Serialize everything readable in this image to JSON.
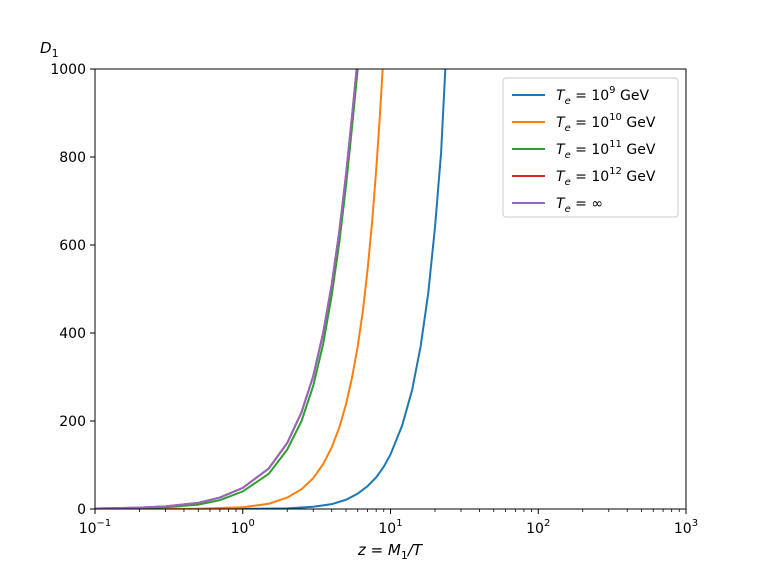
{
  "chart_data": {
    "type": "line",
    "xscale": "log",
    "xlim": [
      0.1,
      1000
    ],
    "ylim": [
      0,
      1000
    ],
    "grid": false,
    "legend_position": "top-right",
    "xlabel": {
      "main": "z = M",
      "sub": "1",
      "tail": "/T"
    },
    "ylabel": {
      "main": "D",
      "sub": "1"
    },
    "xticks": [
      {
        "value": 0.1,
        "base": "10",
        "exp": "−1"
      },
      {
        "value": 1,
        "base": "10",
        "exp": "0"
      },
      {
        "value": 10,
        "base": "10",
        "exp": "1"
      },
      {
        "value": 100,
        "base": "10",
        "exp": "2"
      },
      {
        "value": 1000,
        "base": "10",
        "exp": "3"
      }
    ],
    "yticks": [
      {
        "value": 0,
        "label": "0"
      },
      {
        "value": 200,
        "label": "200"
      },
      {
        "value": 400,
        "label": "400"
      },
      {
        "value": 600,
        "label": "600"
      },
      {
        "value": 800,
        "label": "800"
      },
      {
        "value": 1000,
        "label": "1000"
      }
    ],
    "series": [
      {
        "legend": {
          "lhs": "T",
          "sub": "e",
          "eq": " = 10",
          "exp": "9",
          "unit": "  GeV"
        },
        "color": "#1f77b4",
        "points": [
          [
            0.1,
            0
          ],
          [
            1,
            0.2
          ],
          [
            2,
            1.5
          ],
          [
            3,
            5
          ],
          [
            4,
            11
          ],
          [
            5,
            21
          ],
          [
            6,
            35
          ],
          [
            7,
            52
          ],
          [
            8,
            72
          ],
          [
            9,
            96
          ],
          [
            10,
            124
          ],
          [
            12,
            190
          ],
          [
            14,
            270
          ],
          [
            16,
            370
          ],
          [
            18,
            490
          ],
          [
            20,
            640
          ],
          [
            22,
            810
          ],
          [
            23.5,
            1000
          ]
        ]
      },
      {
        "legend": {
          "lhs": "T",
          "sub": "e",
          "eq": " = 10",
          "exp": "10",
          "unit": " GeV"
        },
        "color": "#ff7f0e",
        "points": [
          [
            0.1,
            0
          ],
          [
            0.5,
            0.5
          ],
          [
            1,
            4
          ],
          [
            1.5,
            12
          ],
          [
            2,
            26
          ],
          [
            2.5,
            45
          ],
          [
            3,
            70
          ],
          [
            3.5,
            102
          ],
          [
            4,
            140
          ],
          [
            4.5,
            185
          ],
          [
            5,
            238
          ],
          [
            5.5,
            300
          ],
          [
            6,
            370
          ],
          [
            6.5,
            450
          ],
          [
            7,
            545
          ],
          [
            7.5,
            650
          ],
          [
            8,
            770
          ],
          [
            8.5,
            900
          ],
          [
            8.85,
            1000
          ]
        ]
      },
      {
        "legend": {
          "lhs": "T",
          "sub": "e",
          "eq": " = 10",
          "exp": "11",
          "unit": " GeV"
        },
        "color": "#2ca02c",
        "points": [
          [
            0.1,
            0.5
          ],
          [
            0.2,
            2
          ],
          [
            0.3,
            4
          ],
          [
            0.5,
            10
          ],
          [
            0.7,
            20
          ],
          [
            1,
            40
          ],
          [
            1.5,
            80
          ],
          [
            2,
            135
          ],
          [
            2.5,
            200
          ],
          [
            3,
            280
          ],
          [
            3.5,
            375
          ],
          [
            4,
            485
          ],
          [
            4.5,
            605
          ],
          [
            5,
            735
          ],
          [
            5.5,
            870
          ],
          [
            6,
            1000
          ]
        ]
      },
      {
        "legend": {
          "lhs": "T",
          "sub": "e",
          "eq": " = 10",
          "exp": "12",
          "unit": " GeV"
        },
        "color": "#d62728",
        "points": [
          [
            0.1,
            1
          ],
          [
            0.2,
            3
          ],
          [
            0.3,
            6
          ],
          [
            0.5,
            14
          ],
          [
            0.7,
            26
          ],
          [
            1,
            48
          ],
          [
            1.5,
            92
          ],
          [
            2,
            150
          ],
          [
            2.5,
            220
          ],
          [
            3,
            302
          ],
          [
            3.5,
            400
          ],
          [
            4,
            510
          ],
          [
            4.5,
            630
          ],
          [
            5,
            760
          ],
          [
            5.5,
            895
          ],
          [
            5.9,
            1000
          ]
        ]
      },
      {
        "legend": {
          "lhs": "T",
          "sub": "e",
          "eq": " = ∞",
          "exp": "",
          "unit": ""
        },
        "color": "#9467bd",
        "points": [
          [
            0.1,
            1
          ],
          [
            0.2,
            3
          ],
          [
            0.3,
            6
          ],
          [
            0.5,
            14
          ],
          [
            0.7,
            26
          ],
          [
            1,
            48
          ],
          [
            1.5,
            92
          ],
          [
            2,
            150
          ],
          [
            2.5,
            220
          ],
          [
            3,
            302
          ],
          [
            3.5,
            400
          ],
          [
            4,
            510
          ],
          [
            4.5,
            630
          ],
          [
            5,
            760
          ],
          [
            5.5,
            895
          ],
          [
            5.9,
            1000
          ]
        ]
      }
    ]
  }
}
